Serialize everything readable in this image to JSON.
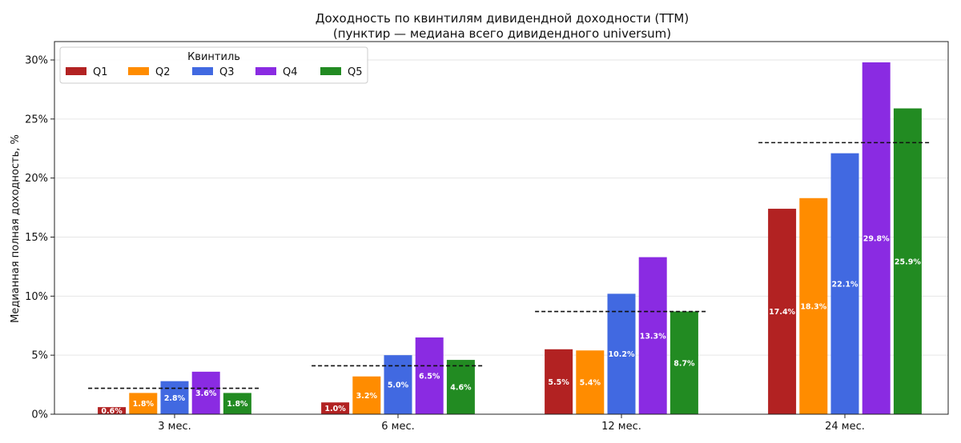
{
  "chart_data": {
    "type": "bar",
    "title": "Доходность по квинтилям дивидендной доходности (TTM)",
    "subtitle": "(пунктир — медиана всего дивидендного universum)",
    "ylabel": "Медианная полная доходность, %",
    "xlabel": "",
    "ylim": [
      0,
      30.0
    ],
    "yticks": [
      "0%",
      "5%",
      "10%",
      "15%",
      "20%",
      "25%",
      "30%"
    ],
    "ytick_values": [
      0,
      5,
      10,
      15,
      20,
      25,
      30
    ],
    "categories": [
      "3 мес.",
      "6 мес.",
      "12 мес.",
      "24 мес."
    ],
    "legend": {
      "title": "Квинтиль",
      "placement": "top-left"
    },
    "grid": "horizontal",
    "series": [
      {
        "name": "Q1",
        "color": "#b22222",
        "values": [
          0.6,
          1.0,
          5.5,
          17.4
        ],
        "labels": [
          "0.6%",
          "1.0%",
          "5.5%",
          "17.4%"
        ]
      },
      {
        "name": "Q2",
        "color": "#ff8c00",
        "values": [
          1.8,
          3.2,
          5.4,
          18.3
        ],
        "labels": [
          "1.8%",
          "3.2%",
          "5.4%",
          "18.3%"
        ]
      },
      {
        "name": "Q3",
        "color": "#4169e1",
        "values": [
          2.8,
          5.0,
          10.2,
          22.1
        ],
        "labels": [
          "2.8%",
          "5.0%",
          "10.2%",
          "22.1%"
        ]
      },
      {
        "name": "Q4",
        "color": "#8a2be2",
        "values": [
          3.6,
          6.5,
          13.3,
          29.8
        ],
        "labels": [
          "3.6%",
          "6.5%",
          "13.3%",
          "29.8%"
        ]
      },
      {
        "name": "Q5",
        "color": "#228b22",
        "values": [
          1.8,
          4.6,
          8.7,
          25.9
        ],
        "labels": [
          "1.8%",
          "4.6%",
          "8.7%",
          "25.9%"
        ]
      }
    ],
    "median_line": {
      "style": "dashed",
      "color": "#111111",
      "values": [
        2.2,
        4.1,
        8.7,
        23.0
      ]
    }
  }
}
